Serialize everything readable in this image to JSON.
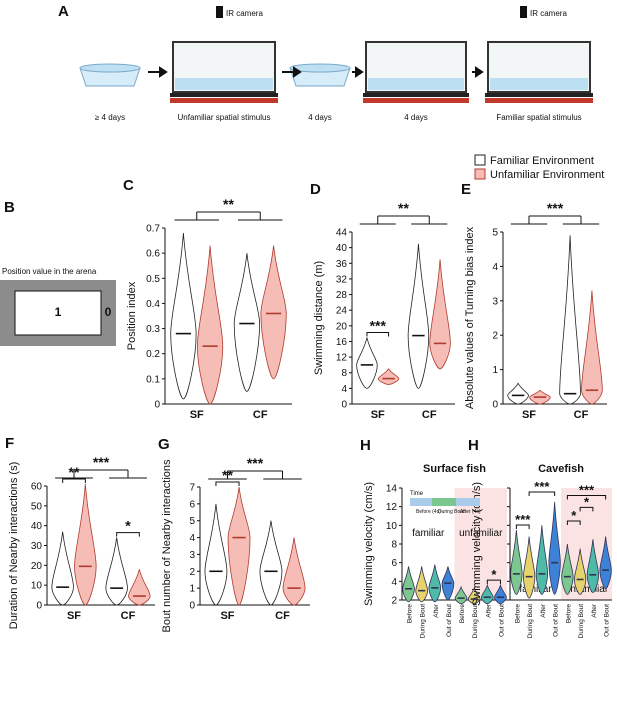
{
  "panel_a": {
    "label": "A",
    "camera": "IR camera",
    "steps": [
      "≥ 4 days",
      "Unfamiliar spatial stimulus",
      "4 days",
      "4 days",
      "Familiar spatial stimulus"
    ]
  },
  "panel_b": {
    "label": "B",
    "caption": "Position value in the arena",
    "inner": "1",
    "outer": "0"
  },
  "chart_data": [
    {
      "type": "violin",
      "label": "C",
      "ylabel": "Position index",
      "categories": [
        "SF",
        "CF"
      ],
      "category_colors": [
        "#111111",
        "#e07b00"
      ],
      "series": [
        {
          "name": "Familiar Environment",
          "color": "#ffffff",
          "stroke": "#222222",
          "values": [
            0.28,
            0.32
          ],
          "min": [
            0.02,
            0.05
          ],
          "max": [
            0.68,
            0.6
          ]
        },
        {
          "name": "Unfamiliar Environment",
          "color": "#f6bdb7",
          "stroke": "#b03a2e",
          "values": [
            0.23,
            0.36
          ],
          "min": [
            0,
            0.1
          ],
          "max": [
            0.63,
            0.63
          ]
        }
      ],
      "ylim": [
        0,
        0.7
      ],
      "yticks": [
        0,
        0.1,
        0.2,
        0.3,
        0.4,
        0.5,
        0.6,
        0.7
      ],
      "annotations": [
        {
          "text": "**",
          "compare": "groups"
        }
      ]
    },
    {
      "type": "violin",
      "label": "D",
      "ylabel": "Swimming distance (m)",
      "categories": [
        "SF",
        "CF"
      ],
      "category_colors": [
        "#111111",
        "#e07b00"
      ],
      "series": [
        {
          "name": "Familiar Environment",
          "color": "#ffffff",
          "stroke": "#222222",
          "values": [
            10,
            17.5
          ],
          "min": [
            4,
            4
          ],
          "max": [
            17,
            41
          ]
        },
        {
          "name": "Unfamiliar Environment",
          "color": "#f6bdb7",
          "stroke": "#b03a2e",
          "values": [
            6.5,
            15.5
          ],
          "min": [
            5,
            9
          ],
          "max": [
            9,
            37
          ]
        }
      ],
      "ylim": [
        0,
        44
      ],
      "yticks": [
        0,
        4,
        8,
        12,
        16,
        20,
        24,
        28,
        32,
        36,
        40,
        44
      ],
      "annotations": [
        {
          "text": "**",
          "compare": "groups"
        },
        {
          "text": "***",
          "compare": "environments",
          "category": 0
        }
      ]
    },
    {
      "type": "violin",
      "label": "E",
      "ylabel": "Absolute values of Turning bias index",
      "categories": [
        "SF",
        "CF"
      ],
      "category_colors": [
        "#111111",
        "#e07b00"
      ],
      "series": [
        {
          "name": "Familiar Environment",
          "color": "#ffffff",
          "stroke": "#222222",
          "values": [
            0.25,
            0.3
          ],
          "min": [
            0,
            0
          ],
          "max": [
            0.6,
            4.9
          ]
        },
        {
          "name": "Unfamiliar Environment",
          "color": "#f6bdb7",
          "stroke": "#b03a2e",
          "values": [
            0.2,
            0.4
          ],
          "min": [
            0,
            0
          ],
          "max": [
            0.4,
            3.3
          ]
        }
      ],
      "ylim": [
        0,
        5
      ],
      "yticks": [
        0,
        1,
        2,
        3,
        4,
        5
      ],
      "annotations": [
        {
          "text": "***",
          "compare": "groups"
        }
      ]
    },
    {
      "type": "violin",
      "label": "F",
      "ylabel": "Duration of Nearby interactions (s)",
      "categories": [
        "SF",
        "CF"
      ],
      "category_colors": [
        "#111111",
        "#e07b00"
      ],
      "series": [
        {
          "name": "Familiar Environment",
          "color": "#ffffff",
          "stroke": "#222222",
          "values": [
            9,
            8.5
          ],
          "min": [
            0,
            0
          ],
          "max": [
            37,
            34
          ]
        },
        {
          "name": "Unfamiliar Environment",
          "color": "#f6bdb7",
          "stroke": "#b03a2e",
          "values": [
            19.5,
            4.5
          ],
          "min": [
            0,
            0
          ],
          "max": [
            61,
            18
          ]
        }
      ],
      "ylim": [
        0,
        60
      ],
      "yticks": [
        0,
        10,
        20,
        30,
        40,
        50,
        60
      ],
      "annotations": [
        {
          "text": "***",
          "compare": "groups"
        },
        {
          "text": "**",
          "compare": "environments",
          "category": 0
        },
        {
          "text": "*",
          "compare": "environments",
          "category": 1
        }
      ]
    },
    {
      "type": "violin",
      "label": "G",
      "ylabel": "Bout number of Nearby interactions",
      "categories": [
        "SF",
        "CF"
      ],
      "category_colors": [
        "#111111",
        "#e07b00"
      ],
      "series": [
        {
          "name": "Familiar Environment",
          "color": "#ffffff",
          "stroke": "#222222",
          "values": [
            2,
            2
          ],
          "min": [
            0,
            0
          ],
          "max": [
            6,
            5
          ]
        },
        {
          "name": "Unfamiliar Environment",
          "color": "#f6bdb7",
          "stroke": "#b03a2e",
          "values": [
            4,
            1
          ],
          "min": [
            0,
            0
          ],
          "max": [
            7,
            4
          ]
        }
      ],
      "ylim": [
        0,
        7
      ],
      "yticks": [
        0,
        1,
        2,
        3,
        4,
        5,
        6,
        7
      ],
      "annotations": [
        {
          "text": "***",
          "compare": "groups"
        },
        {
          "text": "**",
          "compare": "environments",
          "category": 0
        }
      ]
    },
    {
      "type": "violin-grouped",
      "label": "H",
      "ylabel": "Swimming velocity (cm/s)",
      "groups": [
        "Surface fish",
        "Cavefish"
      ],
      "group_colors": [
        "#111111",
        "#e07b00"
      ],
      "conditions": [
        "familiar",
        "unfamiliar"
      ],
      "condition_colors": [
        "#111111",
        "#d9777a"
      ],
      "categories": [
        "Before",
        "During Bout",
        "After",
        "Out of Bout"
      ],
      "category_colors": [
        "#7cc68f",
        "#e6d36b",
        "#4dbba8",
        "#3d82d6"
      ],
      "inset": [
        "Time",
        "Before (4s)",
        "During Bout",
        "After (4s)"
      ],
      "data": [
        [
          {
            "values": [
              3.2,
              3.0,
              3.3,
              3.8
            ],
            "min": [
              1.8,
              1.8,
              1.8,
              2
            ],
            "max": [
              5.6,
              5.6,
              5.8,
              5.6
            ]
          },
          {
            "values": [
              2.2,
              2.1,
              2.3,
              2.3
            ],
            "min": [
              1.6,
              1.6,
              1.6,
              1.6
            ],
            "max": [
              3.4,
              3.3,
              3.6,
              3.6
            ]
          }
        ],
        [
          {
            "values": [
              4.8,
              4.5,
              4.8,
              6.0
            ],
            "min": [
              2.6,
              2.2,
              2.6,
              2.6
            ],
            "max": [
              9.5,
              8.8,
              10,
              12.5
            ]
          },
          {
            "values": [
              4.5,
              4.2,
              4.7,
              5.2
            ],
            "min": [
              2.6,
              2.6,
              2.8,
              3.2
            ],
            "max": [
              8,
              7.5,
              8.5,
              8.8
            ]
          }
        ]
      ],
      "ylim": [
        2,
        14
      ],
      "yticks": [
        2,
        4,
        6,
        8,
        10,
        12,
        14
      ],
      "annotations": [
        {
          "text": "*",
          "group": 0,
          "condition": 1,
          "from": 2,
          "to": 3
        },
        {
          "text": "***",
          "group": 1,
          "condition": 0,
          "from": 0,
          "to": 1
        },
        {
          "text": "***",
          "group": 1,
          "condition": 0,
          "from": 1,
          "to": 3
        },
        {
          "text": "*",
          "group": 1,
          "condition": 1,
          "from": 0,
          "to": 1
        },
        {
          "text": "*",
          "group": 1,
          "condition": 1,
          "from": 1,
          "to": 2
        },
        {
          "text": "***",
          "group": 1,
          "condition": 1,
          "from": 0,
          "to": 3
        }
      ]
    }
  ]
}
